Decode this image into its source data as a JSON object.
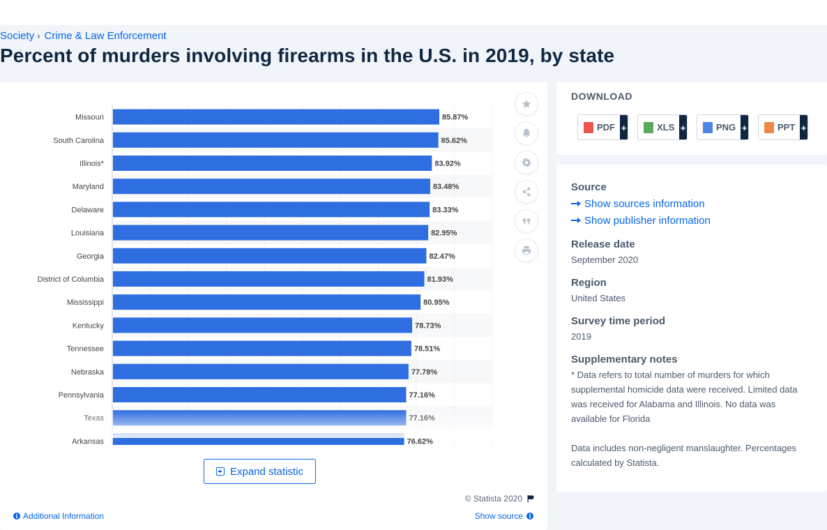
{
  "breadcrumb": {
    "level1": "Society",
    "separator": "›",
    "level2": "Crime & Law Enforcement"
  },
  "page": {
    "title": "Percent of murders involving firearms in the U.S. in 2019, by state"
  },
  "chart_data": {
    "type": "bar",
    "orientation": "horizontal",
    "title": "",
    "xlabel": "",
    "ylabel": "",
    "categories": [
      "Missouri",
      "South Carolina",
      "Illinois*",
      "Maryland",
      "Delaware",
      "Louisiana",
      "Georgia",
      "District of Columbia",
      "Mississippi",
      "Kentucky",
      "Tennessee",
      "Nebraska",
      "Pennsylvania",
      "Texas",
      "Arkansas"
    ],
    "values": [
      85.87,
      85.62,
      83.92,
      83.48,
      83.33,
      82.95,
      82.47,
      81.93,
      80.95,
      78.73,
      78.51,
      77.78,
      77.16,
      77.16,
      76.62
    ],
    "value_labels": [
      "85.87%",
      "85.62%",
      "83.92%",
      "83.48%",
      "83.33%",
      "82.95%",
      "82.47%",
      "81.93%",
      "80.95%",
      "78.73%",
      "78.51%",
      "77.78%",
      "77.16%",
      "77.16%",
      "76.62%"
    ],
    "xlim": [
      0,
      100
    ],
    "grid": true,
    "bar_color": "#2e6ee0",
    "truncated": true
  },
  "chart_tools": [
    "star-icon",
    "bell-icon",
    "gear-icon",
    "share-icon",
    "quote-icon",
    "print-icon"
  ],
  "chart_footer": {
    "expand_label": "Expand statistic",
    "copyright": "© Statista 2020",
    "additional_info": "Additional Information",
    "show_source": "Show source"
  },
  "download": {
    "title": "DOWNLOAD",
    "buttons": [
      {
        "label": "PDF",
        "color": "#e5392e"
      },
      {
        "label": "XLS",
        "color": "#3d9a3f"
      },
      {
        "label": "PNG",
        "color": "#2e6ee0"
      },
      {
        "label": "PPT",
        "color": "#e8742a"
      }
    ],
    "plus": "+"
  },
  "meta": {
    "source_label": "Source",
    "show_sources": "Show sources information",
    "show_publisher": "Show publisher information",
    "release_label": "Release date",
    "release_value": "September 2020",
    "region_label": "Region",
    "region_value": "United States",
    "period_label": "Survey time period",
    "period_value": "2019",
    "notes_label": "Supplementary notes",
    "notes_text1": "* Data refers to total number of murders for which supplemental homicide data were received. Limited data was received for Alabama and Illinois. No data was available for Florida",
    "notes_text2": "Data includes non-negligent manslaughter. Percentages calculated by Statista."
  },
  "colors": {
    "accent": "#0666e5",
    "navy": "#0f2741",
    "bar": "#2e6ee0"
  }
}
